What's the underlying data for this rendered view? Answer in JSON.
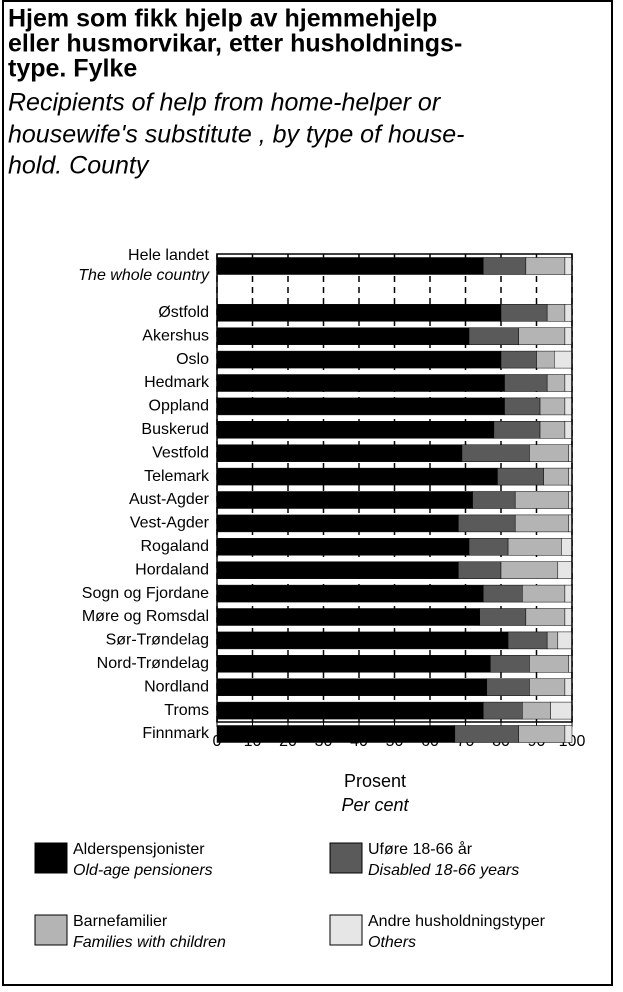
{
  "chart_data": {
    "type": "stacked_bar_horizontal",
    "title": [
      "Hjem som fikk hjelp av hjemmehjelp",
      "eller husmorvikar, etter husholdnings-",
      "type. Fylke"
    ],
    "subtitle": [
      "Recipients of help from home-helper   or",
      "housewife's substitute ,  by type of house-",
      "hold. County"
    ],
    "categories": [
      "Hele landet",
      null,
      "Østfold",
      "Akershus",
      "Oslo",
      "Hedmark",
      "Oppland",
      "Buskerud",
      "Vestfold",
      "Telemark",
      "Aust-Agder",
      "Vest-Agder",
      "Rogaland",
      "Hordaland",
      "Sogn og Fjordane",
      "Møre og Romsdal",
      "Sør-Trøndelag",
      "Nord-Trøndelag",
      "Nordland",
      "Troms",
      "Finnmark"
    ],
    "whole_country_en": "The whole country",
    "series": [
      {
        "name": "Alderspensjonister",
        "name_en": "Old-age pensioners",
        "color": "#000000",
        "values": [
          75,
          null,
          80,
          71,
          80,
          81,
          81,
          78,
          69,
          79,
          72,
          68,
          71,
          68,
          75,
          74,
          82,
          77,
          76,
          75,
          67
        ]
      },
      {
        "name": "Uføre 18-66 år",
        "name_en": "Disabled 18-66 years",
        "color": "#5a5a5a",
        "values": [
          12,
          null,
          13,
          14,
          10,
          12,
          10,
          13,
          19,
          13,
          12,
          16,
          11,
          12,
          11,
          13,
          11,
          11,
          12,
          11,
          18
        ]
      },
      {
        "name": "Barnefamilier",
        "name_en": "Families with children",
        "color": "#b4b4b4",
        "values": [
          11,
          null,
          5,
          13,
          5,
          5,
          7,
          7,
          11,
          7,
          15,
          15,
          15,
          16,
          12,
          11,
          3,
          11,
          10,
          8,
          13
        ]
      },
      {
        "name": "Andre husholdningstyper",
        "name_en": "Others",
        "color": "#e6e6e6",
        "values": [
          2,
          null,
          2,
          2,
          5,
          2,
          2,
          2,
          1,
          1,
          1,
          1,
          3,
          4,
          2,
          2,
          4,
          1,
          2,
          6,
          2
        ]
      }
    ],
    "xlim": [
      0,
      100
    ],
    "xticks": [
      0,
      10,
      20,
      30,
      40,
      50,
      60,
      70,
      80,
      90,
      100
    ],
    "xlabel": "Prosent",
    "xlabel_en": "Per cent",
    "grid": true
  }
}
